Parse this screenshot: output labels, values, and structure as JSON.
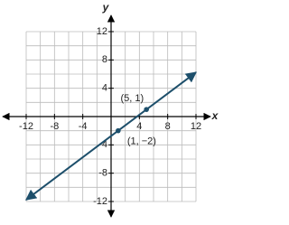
{
  "chart_data": {
    "type": "line",
    "x_label": "x",
    "y_label": "y",
    "xlim": [
      -12,
      12
    ],
    "ylim": [
      -12,
      12
    ],
    "xticks": [
      -12,
      -8,
      -4,
      4,
      8,
      12
    ],
    "yticks": [
      -12,
      -8,
      -4,
      4,
      8,
      12
    ],
    "grid": true,
    "grid_step": 2,
    "series": [
      {
        "color": "#1d4f6b",
        "x": [
          -12,
          12
        ],
        "values": [
          -11.75,
          6.25
        ]
      }
    ],
    "points": {
      "color": "#1d4f6b",
      "x": [
        1,
        5
      ],
      "values": [
        -2,
        1
      ],
      "labels": [
        "(1, −2)",
        "(5, 1)"
      ]
    }
  }
}
